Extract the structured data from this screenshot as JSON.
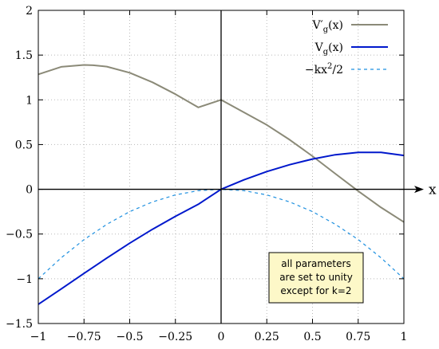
{
  "chart_data": {
    "type": "line",
    "xlabel": "x",
    "ylabel": "",
    "xlim": [
      -1,
      1
    ],
    "ylim": [
      -1.5,
      2
    ],
    "x_ticks": [
      "−1",
      "−0.75",
      "−0.5",
      "−0.25",
      "0",
      "0.25",
      "0.5",
      "0.75",
      "1"
    ],
    "y_ticks": [
      "−1.5",
      "−1",
      "−0.5",
      "0",
      "0.5",
      "1",
      "1.5",
      "2"
    ],
    "grid": true,
    "legend_position": "top-right",
    "series": [
      {
        "name": "V′g(x)",
        "name_base": "V′",
        "name_sub": "g",
        "name_tail": "(x)",
        "color": "#8b8a78",
        "style": "solid",
        "x": [
          -1,
          -0.875,
          -0.75,
          -0.7,
          -0.625,
          -0.5,
          -0.375,
          -0.25,
          -0.125,
          0,
          0.125,
          0.25,
          0.375,
          0.5,
          0.625,
          0.75,
          0.875,
          1
        ],
        "y": [
          1.285,
          1.369,
          1.39,
          1.386,
          1.371,
          1.303,
          1.196,
          1.063,
          0.915,
          1.0,
          0.86,
          0.719,
          0.554,
          0.37,
          0.174,
          -0.02,
          -0.203,
          -0.366
        ]
      },
      {
        "name": "Vg(x)",
        "name_base": "V",
        "name_sub": "g",
        "name_tail": "(x)",
        "color": "#0018cc",
        "style": "solid",
        "x": [
          -1,
          -0.875,
          -0.75,
          -0.625,
          -0.5,
          -0.375,
          -0.25,
          -0.125,
          0,
          0.125,
          0.25,
          0.375,
          0.5,
          0.625,
          0.75,
          0.875,
          1
        ],
        "y": [
          -1.285,
          -1.114,
          -0.94,
          -0.768,
          -0.602,
          -0.446,
          -0.302,
          -0.168,
          0.0,
          0.106,
          0.198,
          0.275,
          0.338,
          0.386,
          0.413,
          0.412,
          0.378
        ]
      },
      {
        "name": "−kx²/2",
        "name_base": "−kx",
        "name_sup": "2",
        "name_tail": "/2",
        "color": "#1e90e0",
        "style": "dashed",
        "x": [
          -1,
          -0.875,
          -0.75,
          -0.625,
          -0.5,
          -0.375,
          -0.25,
          -0.125,
          0,
          0.125,
          0.25,
          0.375,
          0.5,
          0.625,
          0.75,
          0.875,
          1
        ],
        "y": [
          -1.0,
          -0.766,
          -0.5625,
          -0.391,
          -0.25,
          -0.141,
          -0.0625,
          -0.0156,
          0,
          -0.0156,
          -0.0625,
          -0.141,
          -0.25,
          -0.391,
          -0.5625,
          -0.766,
          -1.0
        ]
      }
    ],
    "annotation": {
      "lines": [
        "all parameters",
        "are set to unity",
        "except for k=2"
      ],
      "background": "#fdf8c8"
    }
  }
}
